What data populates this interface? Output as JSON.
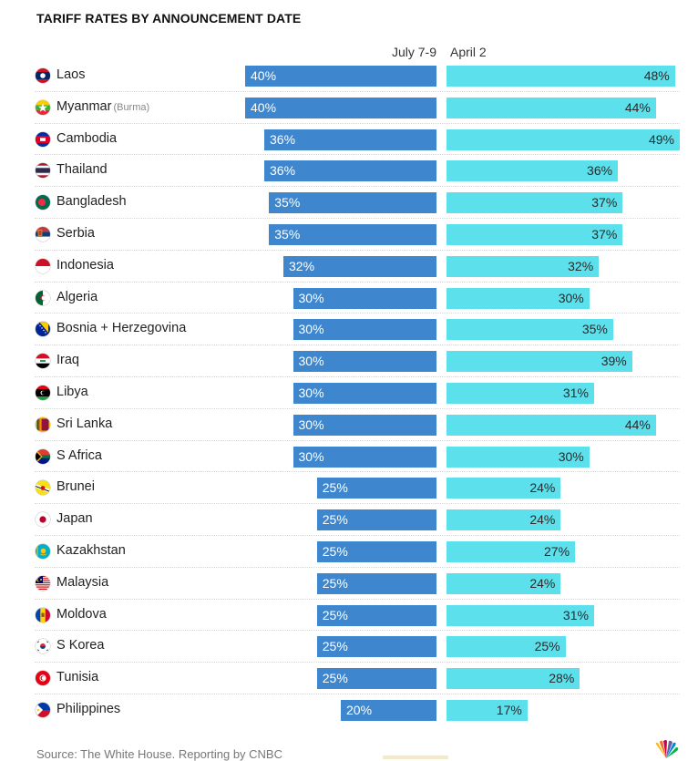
{
  "title": "TARIFF RATES BY ANNOUNCEMENT DATE",
  "source": "Source: The White House. Reporting by CNBC",
  "logo_icon": "nbc-peacock-icon",
  "chart_data": {
    "type": "bar",
    "orientation": "horizontal-butterfly",
    "title": "TARIFF RATES BY ANNOUNCEMENT DATE",
    "series": [
      {
        "name": "July 7-9",
        "color": "#3e86cd",
        "values": [
          40,
          40,
          36,
          36,
          35,
          35,
          32,
          30,
          30,
          30,
          30,
          30,
          30,
          25,
          25,
          25,
          25,
          25,
          25,
          25,
          20
        ]
      },
      {
        "name": "April 2",
        "color": "#5ce0eb",
        "values": [
          48,
          44,
          49,
          36,
          37,
          37,
          32,
          30,
          35,
          39,
          31,
          44,
          30,
          24,
          24,
          27,
          24,
          31,
          25,
          28,
          17
        ]
      }
    ],
    "categories": [
      {
        "name": "Laos",
        "sub": "",
        "flag": "laos-flag-icon"
      },
      {
        "name": "Myanmar",
        "sub": "(Burma)",
        "flag": "myanmar-flag-icon"
      },
      {
        "name": "Cambodia",
        "sub": "",
        "flag": "cambodia-flag-icon"
      },
      {
        "name": "Thailand",
        "sub": "",
        "flag": "thailand-flag-icon"
      },
      {
        "name": "Bangladesh",
        "sub": "",
        "flag": "bangladesh-flag-icon"
      },
      {
        "name": "Serbia",
        "sub": "",
        "flag": "serbia-flag-icon"
      },
      {
        "name": "Indonesia",
        "sub": "",
        "flag": "indonesia-flag-icon"
      },
      {
        "name": "Algeria",
        "sub": "",
        "flag": "algeria-flag-icon"
      },
      {
        "name": "Bosnia + Herzegovina",
        "sub": "",
        "flag": "bosnia-flag-icon"
      },
      {
        "name": "Iraq",
        "sub": "",
        "flag": "iraq-flag-icon"
      },
      {
        "name": "Libya",
        "sub": "",
        "flag": "libya-flag-icon"
      },
      {
        "name": "Sri Lanka",
        "sub": "",
        "flag": "sri-lanka-flag-icon"
      },
      {
        "name": "S Africa",
        "sub": "",
        "flag": "south-africa-flag-icon"
      },
      {
        "name": "Brunei",
        "sub": "",
        "flag": "brunei-flag-icon"
      },
      {
        "name": "Japan",
        "sub": "",
        "flag": "japan-flag-icon"
      },
      {
        "name": "Kazakhstan",
        "sub": "",
        "flag": "kazakhstan-flag-icon"
      },
      {
        "name": "Malaysia",
        "sub": "",
        "flag": "malaysia-flag-icon"
      },
      {
        "name": "Moldova",
        "sub": "",
        "flag": "moldova-flag-icon"
      },
      {
        "name": "S Korea",
        "sub": "",
        "flag": "south-korea-flag-icon"
      },
      {
        "name": "Tunisia",
        "sub": "",
        "flag": "tunisia-flag-icon"
      },
      {
        "name": "Philippines",
        "sub": "",
        "flag": "philippines-flag-icon"
      }
    ],
    "value_suffix": "%",
    "xlim": [
      0,
      50
    ],
    "grid": false,
    "legend": "top-center column headers"
  }
}
